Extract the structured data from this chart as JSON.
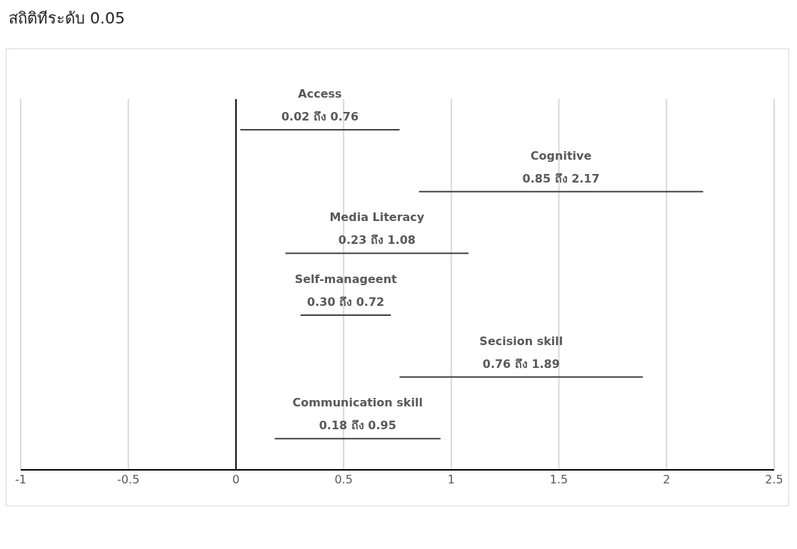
{
  "chart_data": {
    "type": "bar",
    "orientation": "horizontal",
    "categories": [
      "Access",
      "Cognitive",
      "Media Literacy",
      "Self-manageent",
      "Secision skill",
      "Communication skill"
    ],
    "base": [
      0.02,
      0.85,
      0.23,
      0.3,
      0.76,
      0.18
    ],
    "values": [
      0.74,
      1.32,
      0.85,
      0.42,
      1.13,
      0.77
    ],
    "color": "#404040",
    "xlim": [
      -1,
      2.5
    ],
    "xticks": [
      -1,
      -0.5,
      0,
      0.5,
      1,
      1.5,
      2,
      2.5
    ],
    "grid": "x",
    "tick_labels": "x",
    "ref_lines": [
      {
        "axis": "x",
        "value": 0,
        "color": "#000000"
      }
    ],
    "title": "สถิติทีระดับ 0.05",
    "annotations": [
      "0.02 ถึง 0.76",
      "0.85 ถึง 2.17",
      "0.23 ถึง 1.08",
      "0.30 ถึง 0.72",
      "0.76 ถึง 1.89",
      "0.18 ถึง 0.95"
    ]
  }
}
